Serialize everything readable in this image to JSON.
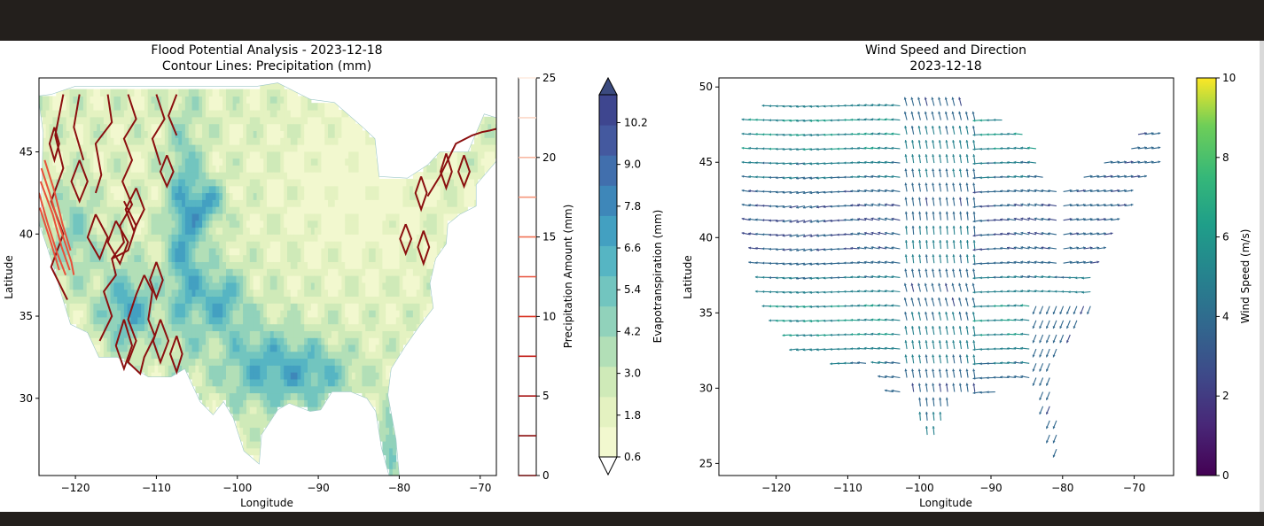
{
  "colors": {
    "frame_dark": "#231f1c",
    "panel_bg": "#ffffff",
    "precip_line": "#8b0f0f",
    "precip_line_light": "#e8503a"
  },
  "chart_data": [
    {
      "type": "contour",
      "title_line1": "Flood Potential Analysis - 2023-12-18",
      "title_line2": "Contour Lines: Precipitation (mm)",
      "xlabel": "Longitude",
      "ylabel": "Latitude",
      "xlim": [
        -124.5,
        -68
      ],
      "ylim": [
        25.3,
        49.5
      ],
      "xticks": [
        -120,
        -110,
        -100,
        -90,
        -80,
        -70
      ],
      "xtick_labels": [
        "−120",
        "−110",
        "−100",
        "−90",
        "−80",
        "−70"
      ],
      "yticks": [
        30,
        35,
        40,
        45
      ],
      "ytick_labels": [
        "30",
        "35",
        "40",
        "45"
      ],
      "filled_field": "Evapotranspiration (mm)",
      "line_field": "Precipitation Amount (mm)",
      "precip_colorbar": {
        "label": "Precipitation Amount (mm)",
        "range": [
          0,
          25
        ],
        "ticks": [
          0,
          5,
          10,
          15,
          20,
          25
        ],
        "tick_labels": [
          "0",
          "5",
          "10",
          "15",
          "20",
          "25"
        ],
        "levels": [
          0,
          2.5,
          5,
          7.5,
          10,
          12.5,
          15,
          17.5,
          20,
          22.5,
          25
        ]
      },
      "evap_colorbar": {
        "label": "Evapotranspiration (mm)",
        "range": [
          0.6,
          11.0
        ],
        "extend": "both",
        "ticks": [
          0.6,
          1.8,
          3.0,
          4.2,
          5.4,
          6.6,
          7.8,
          9.0,
          10.2
        ],
        "tick_labels": [
          "0.6",
          "1.8",
          "3.0",
          "4.2",
          "5.4",
          "6.6",
          "7.8",
          "9.0",
          "10.2"
        ],
        "colors": [
          "#f2f8cf",
          "#e4f2c1",
          "#cfeab8",
          "#b2dfb7",
          "#91d2bb",
          "#72c5bf",
          "#56b5c3",
          "#43a0c1",
          "#3e87b9",
          "#416fad",
          "#44599f",
          "#3e468f"
        ]
      }
    },
    {
      "type": "quiver",
      "title_line1": "Wind Speed and Direction",
      "title_line2": "2023-12-18",
      "xlabel": "Longitude",
      "ylabel": "Latitude",
      "xlim": [
        -128,
        -64.5
      ],
      "ylim": [
        24.2,
        50.6
      ],
      "xticks": [
        -120,
        -110,
        -100,
        -90,
        -80,
        -70
      ],
      "xtick_labels": [
        "−120",
        "−110",
        "−100",
        "−90",
        "−80",
        "−70"
      ],
      "yticks": [
        25,
        30,
        35,
        40,
        45,
        50
      ],
      "ytick_labels": [
        "25",
        "30",
        "35",
        "40",
        "45",
        "50"
      ],
      "colorbar": {
        "label": "Wind Speed (m/s)",
        "range": [
          0,
          10
        ],
        "ticks": [
          0,
          2,
          4,
          6,
          8,
          10
        ],
        "tick_labels": [
          "0",
          "2",
          "4",
          "6",
          "8",
          "10"
        ],
        "colormap": "viridis"
      }
    }
  ]
}
